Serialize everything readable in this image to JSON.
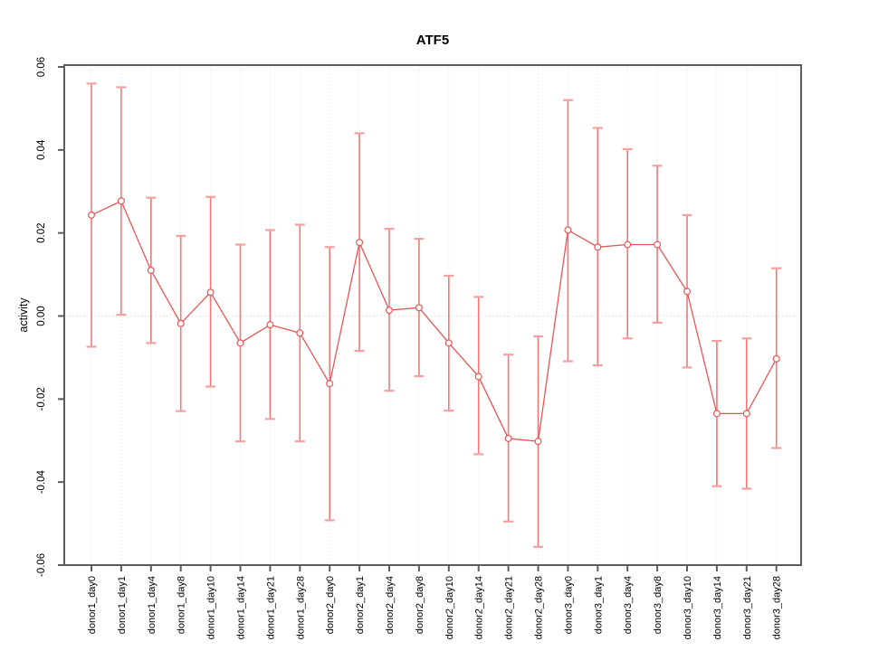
{
  "chart_data": {
    "type": "line",
    "title": "ATF5",
    "xlabel": "",
    "ylabel": "activity",
    "ylim": [
      -0.06,
      0.06
    ],
    "ytick_labels": [
      "0.06",
      "0.04",
      "0.02",
      "0.00",
      "-0.02",
      "-0.04",
      "-0.06"
    ],
    "grid": {
      "vertical_dotted": true,
      "horizontal_zero_dotted": true,
      "other_horizontal": false
    },
    "legend": "none",
    "categories": [
      "donor1_day0",
      "donor1_day1",
      "donor1_day4",
      "donor1_day8",
      "donor1_day10",
      "donor1_day14",
      "donor1_day21",
      "donor1_day28",
      "donor2_day0",
      "donor2_day1",
      "donor2_day4",
      "donor2_day8",
      "donor2_day10",
      "donor2_day14",
      "donor2_day21",
      "donor2_day28",
      "donor3_day0",
      "donor3_day1",
      "donor3_day4",
      "donor3_day8",
      "donor3_day10",
      "donor3_day14",
      "donor3_day21",
      "donor3_day28"
    ],
    "series": [
      {
        "name": "activity",
        "marker": "open-circle",
        "values": [
          0.0243,
          0.0277,
          0.011,
          -0.0018,
          0.0057,
          -0.0065,
          -0.0021,
          -0.0041,
          -0.0163,
          0.0177,
          0.0014,
          0.002,
          -0.0065,
          -0.0146,
          -0.0295,
          -0.0302,
          0.0207,
          0.0166,
          0.0172,
          0.0172,
          0.0059,
          -0.0235,
          -0.0235,
          -0.0103
        ],
        "upper": [
          0.056,
          0.0551,
          0.0285,
          0.0193,
          0.0287,
          0.0172,
          0.0207,
          0.022,
          0.0166,
          0.044,
          0.021,
          0.0186,
          0.0097,
          0.0046,
          -0.0093,
          -0.0049,
          0.052,
          0.0453,
          0.0402,
          0.0362,
          0.0243,
          -0.006,
          -0.0054,
          0.0115
        ],
        "lower": [
          -0.0074,
          0.0003,
          -0.0065,
          -0.0229,
          -0.017,
          -0.0302,
          -0.0248,
          -0.0302,
          -0.0492,
          -0.0084,
          -0.018,
          -0.0145,
          -0.0228,
          -0.0333,
          -0.0495,
          -0.0556,
          -0.0109,
          -0.0119,
          -0.0054,
          -0.0016,
          -0.0124,
          -0.041,
          -0.0416,
          -0.0318
        ]
      }
    ],
    "colors": {
      "line": "#e85555",
      "marker_stroke": "#e85555",
      "marker_fill": "#ffffff",
      "errorbar_stem": "#f07878",
      "errorbar_cap": "#f5a0a0",
      "gridline": "#e0e0e0",
      "zero_line": "#dadada",
      "box": "#5c5c5c",
      "tick": "#5c5c5c",
      "background": "#ffffff"
    }
  }
}
